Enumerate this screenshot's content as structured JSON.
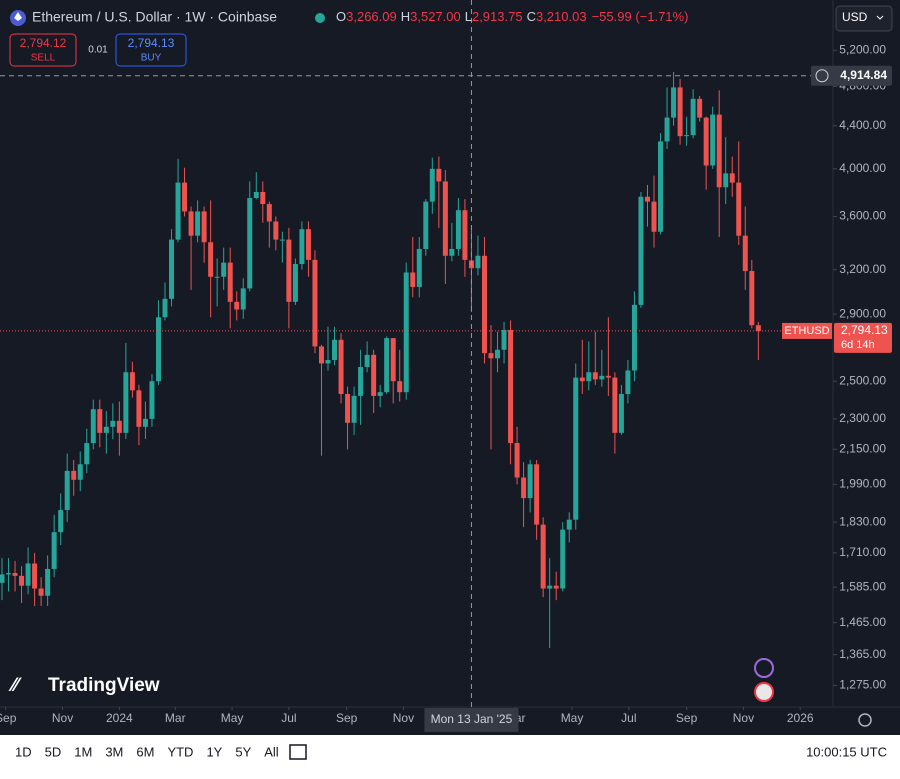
{
  "header": {
    "symbol": "Ethereum / U.S. Dollar · 1W · Coinbase",
    "ohlc": [
      {
        "key": "O",
        "value": "3,266.09"
      },
      {
        "key": "H",
        "value": "3,527.00"
      },
      {
        "key": "L",
        "value": "2,913.75"
      },
      {
        "key": "C",
        "value": "3,210.03"
      }
    ],
    "change": "−55.99 (−1.71%)",
    "currency": "USD"
  },
  "trade": {
    "sell_price": "2,794.12",
    "sell_label": "SELL",
    "spread": "0.01",
    "buy_price": "2,794.13",
    "buy_label": "BUY"
  },
  "logo": "TradingView",
  "toolbar": {
    "ranges": [
      "1D",
      "5D",
      "1M",
      "3M",
      "6M",
      "YTD",
      "1Y",
      "5Y",
      "All"
    ],
    "clock": "10:00:15 UTC"
  },
  "chart_data": {
    "type": "candlestick",
    "log_scale": true,
    "grid": false,
    "up_color": "#26a69a",
    "down_color": "#ef5350",
    "x": [
      "2023-08-28",
      "2023-09-04",
      "2023-09-11",
      "2023-09-18",
      "2023-09-25",
      "2023-10-02",
      "2023-10-09",
      "2023-10-16",
      "2023-10-23",
      "2023-10-30",
      "2023-11-06",
      "2023-11-13",
      "2023-11-20",
      "2023-11-27",
      "2023-12-04",
      "2023-12-11",
      "2023-12-18",
      "2023-12-25",
      "2024-01-01",
      "2024-01-08",
      "2024-01-15",
      "2024-01-22",
      "2024-01-29",
      "2024-02-05",
      "2024-02-12",
      "2024-02-19",
      "2024-02-26",
      "2024-03-04",
      "2024-03-11",
      "2024-03-18",
      "2024-03-25",
      "2024-04-01",
      "2024-04-08",
      "2024-04-15",
      "2024-04-22",
      "2024-04-29",
      "2024-05-06",
      "2024-05-13",
      "2024-05-20",
      "2024-05-27",
      "2024-06-03",
      "2024-06-10",
      "2024-06-17",
      "2024-06-24",
      "2024-07-01",
      "2024-07-08",
      "2024-07-15",
      "2024-07-22",
      "2024-07-29",
      "2024-08-05",
      "2024-08-12",
      "2024-08-19",
      "2024-08-26",
      "2024-09-02",
      "2024-09-09",
      "2024-09-16",
      "2024-09-23",
      "2024-09-30",
      "2024-10-07",
      "2024-10-14",
      "2024-10-21",
      "2024-10-28",
      "2024-11-04",
      "2024-11-11",
      "2024-11-18",
      "2024-11-25",
      "2024-12-02",
      "2024-12-09",
      "2024-12-16",
      "2024-12-23",
      "2024-12-30",
      "2025-01-06",
      "2025-01-13",
      "2025-01-20",
      "2025-01-27",
      "2025-02-03",
      "2025-02-10",
      "2025-02-17",
      "2025-02-24",
      "2025-03-03",
      "2025-03-10",
      "2025-03-17",
      "2025-03-24",
      "2025-03-31",
      "2025-04-07",
      "2025-04-14",
      "2025-04-21",
      "2025-04-28",
      "2025-05-05",
      "2025-05-12",
      "2025-05-19",
      "2025-05-26",
      "2025-06-02",
      "2025-06-09",
      "2025-06-16",
      "2025-06-23",
      "2025-06-30",
      "2025-07-07",
      "2025-07-14",
      "2025-07-21",
      "2025-07-28",
      "2025-08-04",
      "2025-08-11",
      "2025-08-18",
      "2025-08-25",
      "2025-09-01",
      "2025-09-08",
      "2025-09-15",
      "2025-09-22",
      "2025-09-29",
      "2025-10-06",
      "2025-10-13",
      "2025-10-20",
      "2025-10-27",
      "2025-11-03",
      "2025-11-10",
      "2025-11-17"
    ],
    "open": [
      1600,
      1630,
      1635,
      1625,
      1590,
      1670,
      1580,
      1555,
      1650,
      1790,
      1880,
      2050,
      2010,
      2080,
      2180,
      2350,
      2230,
      2260,
      2290,
      2230,
      2550,
      2450,
      2260,
      2300,
      2500,
      2880,
      3000,
      3420,
      3880,
      3640,
      3450,
      3640,
      3400,
      3150,
      3150,
      3250,
      2980,
      2930,
      3070,
      3750,
      3800,
      3700,
      3560,
      3420,
      3420,
      2980,
      3240,
      3500,
      3270,
      2700,
      2600,
      2620,
      2740,
      2430,
      2280,
      2420,
      2580,
      2650,
      2420,
      2440,
      2750,
      2500,
      2440,
      3180,
      3080,
      3350,
      3720,
      4000,
      3890,
      3300,
      3350,
      3650,
      3266.09,
      3210.03,
      3300,
      2660,
      2630,
      2680,
      2800,
      2180,
      2020,
      1930,
      2080,
      1820,
      1580,
      1590,
      1580,
      1800,
      1840,
      2520,
      2500,
      2550,
      2510,
      2530,
      2520,
      2230,
      2430,
      2560,
      2960,
      3760,
      3720,
      3480,
      4250,
      4480,
      4790,
      4300,
      4310,
      4670,
      4480,
      4030,
      4510,
      3840,
      3960,
      3880,
      3450,
      3190,
      2830
    ],
    "high": [
      1690,
      1690,
      1680,
      1660,
      1730,
      1710,
      1620,
      1700,
      1860,
      1950,
      2130,
      2100,
      2140,
      2250,
      2400,
      2400,
      2340,
      2380,
      2390,
      2720,
      2610,
      2480,
      2390,
      2540,
      2990,
      3110,
      3500,
      4090,
      4010,
      3680,
      3730,
      3680,
      3730,
      3280,
      3360,
      3360,
      3050,
      3140,
      3890,
      3970,
      3890,
      3720,
      3600,
      3480,
      3510,
      3280,
      3560,
      3560,
      3340,
      2710,
      2820,
      2820,
      2780,
      2470,
      2470,
      2680,
      2730,
      2680,
      2480,
      2760,
      2750,
      2680,
      3250,
      3440,
      3440,
      3740,
      4100,
      4110,
      3990,
      3550,
      3750,
      3740,
      3527,
      3450,
      3440,
      2830,
      2790,
      2850,
      2860,
      2260,
      2090,
      2100,
      2100,
      1850,
      1690,
      1640,
      1830,
      1870,
      2600,
      2740,
      2730,
      2790,
      2680,
      2880,
      2550,
      2480,
      2620,
      3050,
      3800,
      3860,
      3940,
      4330,
      4790,
      4956,
      4880,
      4490,
      4770,
      4700,
      4490,
      4590,
      4760,
      4290,
      4110,
      4250,
      3680,
      3270,
      2850
    ],
    "low": [
      1540,
      1570,
      1570,
      1530,
      1560,
      1520,
      1520,
      1520,
      1620,
      1740,
      1830,
      1940,
      1960,
      2040,
      2150,
      2160,
      2130,
      2200,
      2120,
      2200,
      2410,
      2170,
      2200,
      2260,
      2480,
      2860,
      2950,
      3400,
      3600,
      3060,
      3400,
      3250,
      2880,
      2950,
      3060,
      2810,
      2860,
      2870,
      3050,
      3740,
      3550,
      3360,
      3340,
      3250,
      2810,
      2960,
      3200,
      3150,
      2660,
      2120,
      2560,
      2590,
      2380,
      2150,
      2220,
      2270,
      2550,
      2330,
      2360,
      2430,
      2380,
      2390,
      2400,
      3010,
      3010,
      3300,
      3620,
      3510,
      3100,
      3260,
      3300,
      3150,
      2913.75,
      3160,
      2600,
      2150,
      2550,
      2600,
      2080,
      1990,
      1810,
      1870,
      1760,
      1550,
      1385,
      1540,
      1570,
      1750,
      1800,
      2430,
      2450,
      2480,
      2470,
      2420,
      2130,
      2220,
      2380,
      2500,
      2940,
      3520,
      3360,
      3460,
      4180,
      4400,
      4220,
      4210,
      4280,
      4440,
      3820,
      4000,
      3440,
      3700,
      3760,
      3380,
      3060,
      2810,
      2620
    ],
    "close": [
      1630,
      1635,
      1625,
      1590,
      1670,
      1580,
      1555,
      1650,
      1790,
      1880,
      2050,
      2010,
      2080,
      2180,
      2350,
      2230,
      2260,
      2290,
      2230,
      2550,
      2450,
      2260,
      2300,
      2500,
      2880,
      3000,
      3420,
      3880,
      3640,
      3450,
      3640,
      3400,
      3150,
      3150,
      3250,
      2980,
      2930,
      3070,
      3750,
      3800,
      3700,
      3560,
      3420,
      3420,
      2980,
      3240,
      3500,
      3270,
      2700,
      2600,
      2620,
      2740,
      2430,
      2280,
      2420,
      2580,
      2650,
      2420,
      2440,
      2750,
      2500,
      2440,
      3180,
      3080,
      3350,
      3720,
      4000,
      3890,
      3300,
      3350,
      3650,
      3270,
      3210.03,
      3300,
      2660,
      2630,
      2680,
      2800,
      2180,
      2020,
      1930,
      2080,
      1820,
      1580,
      1590,
      1580,
      1800,
      1840,
      2520,
      2500,
      2550,
      2510,
      2530,
      2520,
      2230,
      2430,
      2560,
      2960,
      3760,
      3720,
      3480,
      4250,
      4480,
      4790,
      4300,
      4310,
      4670,
      4480,
      4030,
      4510,
      3840,
      3960,
      3880,
      3450,
      3190,
      2830,
      2794.13
    ],
    "ylim": [
      1221,
      5710
    ],
    "yticks": [
      {
        "value": 5200,
        "label": "5,200.00"
      },
      {
        "value": 4800,
        "label": "4,800.00"
      },
      {
        "value": 4400,
        "label": "4,400.00"
      },
      {
        "value": 4000,
        "label": "4,000.00"
      },
      {
        "value": 3600,
        "label": "3,600.00"
      },
      {
        "value": 3200,
        "label": "3,200.00"
      },
      {
        "value": 2900,
        "label": "2,900.00"
      },
      {
        "value": 2500,
        "label": "2,500.00"
      },
      {
        "value": 2300,
        "label": "2,300.00"
      },
      {
        "value": 2150,
        "label": "2,150.00"
      },
      {
        "value": 1990,
        "label": "1,990.00"
      },
      {
        "value": 1830,
        "label": "1,830.00"
      },
      {
        "value": 1710,
        "label": "1,710.00"
      },
      {
        "value": 1585,
        "label": "1,585.00"
      },
      {
        "value": 1465,
        "label": "1,465.00"
      },
      {
        "value": 1365,
        "label": "1,365.00"
      },
      {
        "value": 1275,
        "label": "1,275.00"
      }
    ],
    "xticks": [
      {
        "value": "2023-09-01",
        "label": "Sep"
      },
      {
        "value": "2023-11-01",
        "label": "Nov"
      },
      {
        "value": "2024-01-01",
        "label": "2024"
      },
      {
        "value": "2024-03-01",
        "label": "Mar"
      },
      {
        "value": "2024-05-01",
        "label": "May"
      },
      {
        "value": "2024-07-01",
        "label": "Jul"
      },
      {
        "value": "2024-09-01",
        "label": "Sep"
      },
      {
        "value": "2024-11-01",
        "label": "Nov"
      },
      {
        "value": "2025-03-01",
        "label": "Mar"
      },
      {
        "value": "2025-05-01",
        "label": "May"
      },
      {
        "value": "2025-07-01",
        "label": "Jul"
      },
      {
        "value": "2025-09-01",
        "label": "Sep"
      },
      {
        "value": "2025-11-01",
        "label": "Nov"
      },
      {
        "value": "2026-01-01",
        "label": "2026"
      }
    ],
    "last_price": {
      "value": 2794.13,
      "label": "2,794.13",
      "symbol": "ETHUSD",
      "countdown": "6d 14h"
    },
    "crosshair": {
      "price": 4914.84,
      "price_label": "4,914.84",
      "date": "2025-01-13",
      "date_label": "Mon 13 Jan '25"
    }
  }
}
